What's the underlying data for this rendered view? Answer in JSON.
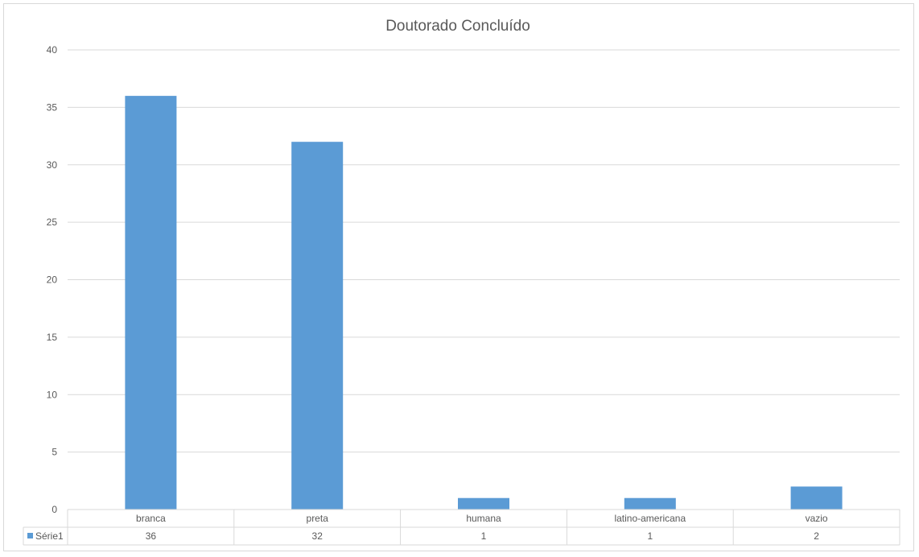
{
  "chart_data": {
    "type": "bar",
    "title": "Doutorado Concluído",
    "categories": [
      "branca",
      "preta",
      "humana",
      "latino-americana",
      "vazio"
    ],
    "series": [
      {
        "name": "Série1",
        "values": [
          36,
          32,
          1,
          1,
          2
        ]
      }
    ],
    "ylim": [
      0,
      40
    ],
    "yticks": [
      0,
      5,
      10,
      15,
      20,
      25,
      30,
      35,
      40
    ],
    "grid": true,
    "legend": "data-table-left",
    "data_table": true,
    "colors": {
      "bar": "#5b9bd5",
      "grid": "#d9d9d9",
      "text": "#595959",
      "title": "#595959",
      "table_border": "#d9d9d9"
    }
  }
}
